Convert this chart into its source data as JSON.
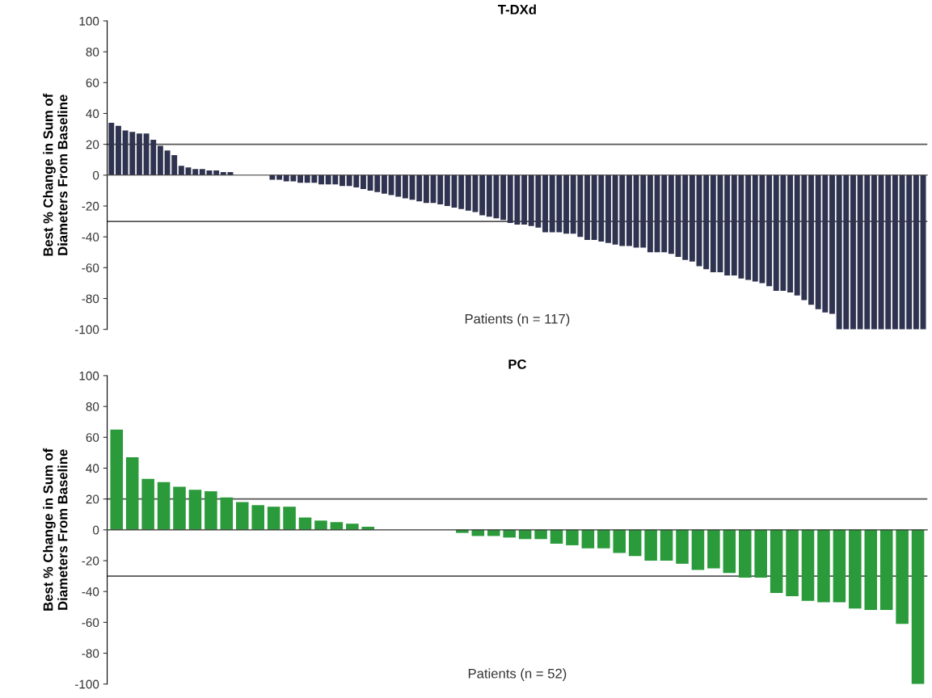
{
  "chart_data": [
    {
      "type": "bar",
      "title": "T-DXd",
      "ylabel": "Best % Change in Sum of\nDiameters From Baseline",
      "tick_labels": "y",
      "color": "#2f3350",
      "categories": [
        null,
        null,
        null,
        null,
        null,
        null,
        null,
        null,
        null,
        null,
        null,
        null,
        null,
        null,
        null,
        null,
        null,
        null,
        null,
        null,
        null,
        null,
        null,
        null,
        null,
        null,
        null,
        null,
        null,
        null,
        null,
        null,
        null,
        null,
        null,
        null,
        null,
        null,
        null,
        null,
        null,
        null,
        null,
        null,
        null,
        null,
        null,
        null,
        null,
        null,
        null,
        null,
        null,
        null,
        null,
        null,
        null,
        null,
        null,
        null,
        null,
        null,
        null,
        null,
        null,
        null,
        null,
        null,
        null,
        null,
        null,
        null,
        null,
        null,
        null,
        null,
        null,
        null,
        null,
        null,
        null,
        null,
        null,
        null,
        null,
        null,
        null,
        null,
        null,
        null,
        null,
        null,
        null,
        null,
        null,
        null,
        null,
        null,
        null,
        null,
        null,
        null,
        null,
        null,
        null,
        null,
        null,
        null,
        null,
        null,
        null,
        null,
        null,
        null,
        null,
        null,
        null
      ],
      "values": [
        34,
        32,
        29,
        28,
        27,
        27,
        23,
        19,
        16,
        13,
        6,
        5,
        4,
        4,
        3,
        3,
        2,
        2,
        0,
        0,
        0,
        0,
        0,
        -3,
        -3,
        -4,
        -4,
        -5,
        -5,
        -5,
        -6,
        -6,
        -6,
        -7,
        -7,
        -8,
        -9,
        -10,
        -11,
        -12,
        -13,
        -14,
        -15,
        -16,
        -17,
        -18,
        -18,
        -19,
        -20,
        -21,
        -22,
        -23,
        -24,
        -26,
        -27,
        -28,
        -29,
        -31,
        -32,
        -32,
        -33,
        -34,
        -37,
        -37,
        -37,
        -38,
        -38,
        -40,
        -42,
        -42,
        -43,
        -44,
        -45,
        -46,
        -46,
        -47,
        -47,
        -50,
        -50,
        -50,
        -51,
        -53,
        -55,
        -56,
        -59,
        -61,
        -63,
        -63,
        -65,
        -65,
        -67,
        -68,
        -69,
        -70,
        -72,
        -75,
        -75,
        -76,
        -78,
        -81,
        -84,
        -87,
        -89,
        -90,
        -100,
        -100,
        -100,
        -100,
        -100,
        -100,
        -100,
        -100,
        -100,
        -100,
        -100,
        -100,
        -100
      ],
      "ylim": [
        -100,
        100
      ],
      "yticks": [
        -100,
        -80,
        -60,
        -40,
        -20,
        0,
        20,
        40,
        60,
        80,
        100
      ],
      "ref_lines": [
        {
          "axis": "y",
          "value": 20,
          "color": "#555555"
        },
        {
          "axis": "y",
          "value": -30,
          "color": "#555555"
        }
      ],
      "annotations": [
        "Patients (n = 117)"
      ],
      "grid": false
    },
    {
      "type": "bar",
      "title": "PC",
      "ylabel": "Best % Change in Sum of\nDiameters From Baseline",
      "tick_labels": "y",
      "color": "#2a9a3a",
      "categories": [
        null,
        null,
        null,
        null,
        null,
        null,
        null,
        null,
        null,
        null,
        null,
        null,
        null,
        null,
        null,
        null,
        null,
        null,
        null,
        null,
        null,
        null,
        null,
        null,
        null,
        null,
        null,
        null,
        null,
        null,
        null,
        null,
        null,
        null,
        null,
        null,
        null,
        null,
        null,
        null,
        null,
        null,
        null,
        null,
        null,
        null,
        null,
        null,
        null,
        null,
        null,
        null
      ],
      "values": [
        65,
        47,
        33,
        31,
        28,
        26,
        25,
        21,
        18,
        16,
        15,
        15,
        8,
        6,
        5,
        4,
        2,
        0,
        0,
        0,
        0,
        0,
        -2,
        -4,
        -4,
        -5,
        -6,
        -6,
        -9,
        -10,
        -12,
        -12,
        -15,
        -17,
        -20,
        -20,
        -22,
        -26,
        -25,
        -28,
        -31,
        -31,
        -41,
        -43,
        -46,
        -47,
        -47,
        -51,
        -52,
        -52,
        -61,
        -100
      ],
      "ylim": [
        -100,
        100
      ],
      "yticks": [
        -100,
        -80,
        -60,
        -40,
        -20,
        0,
        20,
        40,
        60,
        80,
        100
      ],
      "ref_lines": [
        {
          "axis": "y",
          "value": 20,
          "color": "#555555"
        },
        {
          "axis": "y",
          "value": -30,
          "color": "#555555"
        }
      ],
      "annotations": [
        "Patients (n = 52)"
      ],
      "grid": false
    }
  ]
}
